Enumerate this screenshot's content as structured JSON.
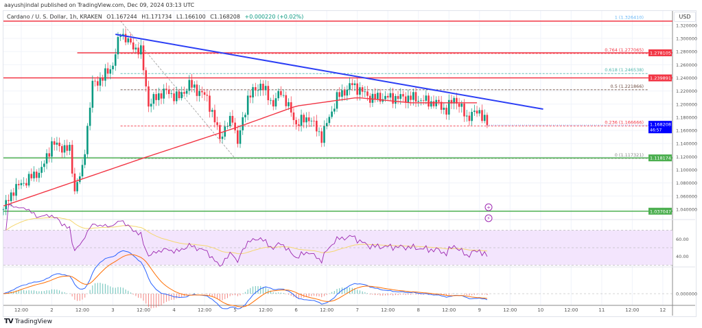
{
  "publisher": "aayushjindal published on TradingView.com, Dec 09, 2024 03:13 UTC",
  "legend": {
    "symbol": "Cardano / U. S. Dollar, 1h, KRAKEN",
    "open": "O1.167244",
    "high": "H1.171734",
    "low": "L1.166100",
    "close": "C1.168208",
    "change": "+0.000220 (+0.02%)"
  },
  "currency": "USD",
  "brand": "TradingView",
  "colors": {
    "up": "#089981",
    "down": "#f23645",
    "trend": "#2b3ef5",
    "ma": "#f23645",
    "rsi": "#9c27b0",
    "rsi_ma": "#f5d76e",
    "macd": "#2962ff",
    "signal": "#ff6d00"
  },
  "chart_data": {
    "type": "candlestick",
    "price_ticks": [
      "1.320000",
      "1.300000",
      "1.280000",
      "1.260000",
      "1.240000",
      "1.220000",
      "1.200000",
      "1.180000",
      "1.160000",
      "1.140000",
      "1.120000",
      "1.100000",
      "1.080000",
      "1.060000",
      "1.040000"
    ],
    "price_range": [
      1.0415,
      1.3345
    ],
    "hours_range": [
      0,
      263
    ],
    "time_labels": [
      "12:00",
      "2",
      "12:00",
      "3",
      "12:00",
      "4",
      "12:00",
      "5",
      "12:00",
      "6",
      "12:00",
      "7",
      "12:00",
      "8",
      "12:00",
      "9",
      "12:00",
      "10",
      "12:00",
      "11",
      "12:00",
      "12"
    ],
    "first_label_hour": 7,
    "price_path": [
      [
        0,
        1.04
      ],
      [
        4,
        1.07
      ],
      [
        15,
        1.1
      ],
      [
        19,
        1.14
      ],
      [
        26,
        1.13
      ],
      [
        28,
        1.07
      ],
      [
        31,
        1.1
      ],
      [
        35,
        1.23
      ],
      [
        39,
        1.24
      ],
      [
        43,
        1.26
      ],
      [
        46,
        1.31
      ],
      [
        50,
        1.29
      ],
      [
        54,
        1.28
      ],
      [
        57,
        1.2
      ],
      [
        63,
        1.22
      ],
      [
        69,
        1.21
      ],
      [
        73,
        1.23
      ],
      [
        80,
        1.21
      ],
      [
        85,
        1.15
      ],
      [
        90,
        1.18
      ],
      [
        92,
        1.14
      ],
      [
        96,
        1.21
      ],
      [
        101,
        1.23
      ],
      [
        106,
        1.2
      ],
      [
        109,
        1.22
      ],
      [
        115,
        1.17
      ],
      [
        120,
        1.18
      ],
      [
        125,
        1.15
      ],
      [
        131,
        1.21
      ],
      [
        137,
        1.23
      ],
      [
        144,
        1.21
      ],
      [
        160,
        1.21
      ],
      [
        171,
        1.2
      ],
      [
        174,
        1.19
      ],
      [
        177,
        1.21
      ],
      [
        182,
        1.18
      ],
      [
        187,
        1.19
      ],
      [
        190,
        1.168
      ]
    ],
    "moving_average": [
      [
        0,
        1.045
      ],
      [
        55,
        1.118
      ],
      [
        92,
        1.165
      ],
      [
        115,
        1.197
      ],
      [
        139,
        1.21
      ],
      [
        160,
        1.202
      ],
      [
        187,
        1.202
      ]
    ],
    "trendline": [
      [
        44,
        1.3063
      ],
      [
        212,
        1.1924
      ]
    ],
    "horizontal_levels": [
      {
        "price": 1.32641,
        "label": "",
        "color": "#f23645",
        "from_hour": 0
      },
      {
        "price": 1.278105,
        "label": "1.278105",
        "color": "#f23645",
        "from_hour": 29
      },
      {
        "price": 1.239891,
        "label": "1.239891",
        "color": "#f23645",
        "from_hour": 0
      },
      {
        "price": 1.118174,
        "label": "1.118174",
        "color": "#4caf50",
        "from_hour": 0
      },
      {
        "price": 1.037047,
        "label": "1.037047",
        "color": "#4caf50",
        "from_hour": 0
      }
    ],
    "fib_levels": [
      {
        "ratio": "1 (1.326410)",
        "price": 1.32641,
        "color": "#64b5f6"
      },
      {
        "ratio": "0.764 (1.277065)",
        "price": 1.277065,
        "color": "#f23645"
      },
      {
        "ratio": "0.618 (1.246538)",
        "price": 1.246538,
        "color": "#4db6ac"
      },
      {
        "ratio": "0.5 (1.221866)",
        "price": 1.221866,
        "color": "#6d4c41"
      },
      {
        "ratio": "0.236 (1.166666)",
        "price": 1.166666,
        "color": "#f23645"
      },
      {
        "ratio": "0 (1.117321)",
        "price": 1.117321,
        "color": "#888888"
      }
    ],
    "fib_from_hour": 46,
    "last_price": "1.168208",
    "countdown": "46:57",
    "rsi_ticks": [
      "60.00",
      "40.00"
    ],
    "macd_ticks": [
      "0.000000"
    ]
  }
}
